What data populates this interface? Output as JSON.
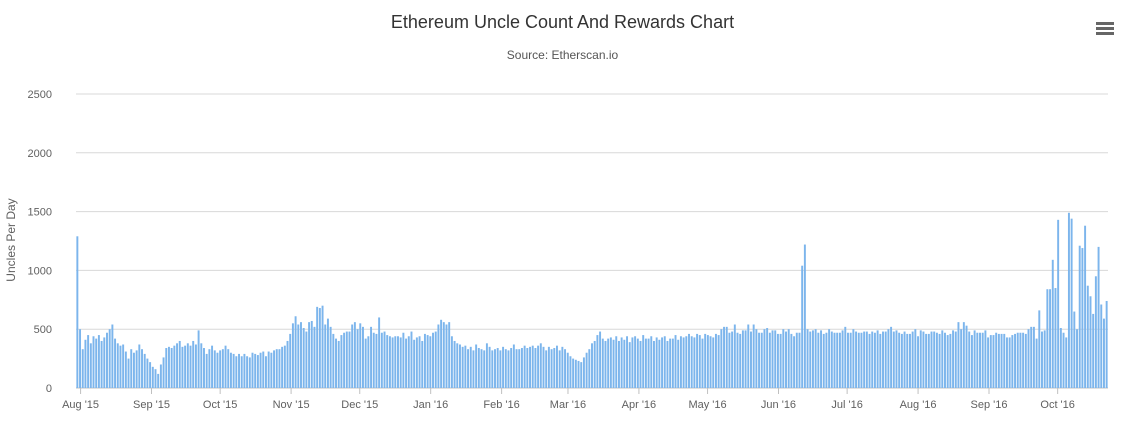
{
  "header": {
    "title": "Ethereum Uncle Count And Rewards Chart",
    "subtitle": "Source: Etherscan.io",
    "menu_icon": "hamburger-menu-icon"
  },
  "colors": {
    "bar": "#7CB5EC",
    "grid": "#D8D8D8",
    "axis_text": "#606060"
  },
  "chart_data": {
    "type": "bar",
    "title": "Ethereum Uncle Count And Rewards Chart",
    "subtitle": "Source: Etherscan.io",
    "xlabel": "",
    "ylabel": "Uncles Per Day",
    "ylim": [
      0,
      2500
    ],
    "yticks": [
      0,
      500,
      1000,
      1500,
      2000,
      2500
    ],
    "grid": true,
    "x_start": "2015-07-30",
    "x_end": "2016-10-23",
    "xtick_labels": [
      {
        "date": "2015-08-01",
        "label": "Aug '15"
      },
      {
        "date": "2015-09-01",
        "label": "Sep '15"
      },
      {
        "date": "2015-10-01",
        "label": "Oct '15"
      },
      {
        "date": "2015-11-01",
        "label": "Nov '15"
      },
      {
        "date": "2015-12-01",
        "label": "Dec '15"
      },
      {
        "date": "2016-01-01",
        "label": "Jan '16"
      },
      {
        "date": "2016-02-01",
        "label": "Feb '16"
      },
      {
        "date": "2016-03-01",
        "label": "Mar '16"
      },
      {
        "date": "2016-04-01",
        "label": "Apr '16"
      },
      {
        "date": "2016-05-01",
        "label": "May '16"
      },
      {
        "date": "2016-06-01",
        "label": "Jun '16"
      },
      {
        "date": "2016-07-01",
        "label": "Jul '16"
      },
      {
        "date": "2016-08-01",
        "label": "Aug '16"
      },
      {
        "date": "2016-09-01",
        "label": "Sep '16"
      },
      {
        "date": "2016-10-01",
        "label": "Oct '16"
      }
    ],
    "series": [
      {
        "values": [
          1290,
          500,
          330,
          410,
          450,
          380,
          440,
          420,
          450,
          400,
          430,
          470,
          500,
          540,
          420,
          380,
          360,
          370,
          310,
          250,
          330,
          300,
          320,
          370,
          330,
          290,
          250,
          220,
          180,
          160,
          120,
          200,
          260,
          340,
          350,
          340,
          360,
          380,
          400,
          350,
          360,
          380,
          360,
          400,
          370,
          490,
          380,
          340,
          290,
          330,
          360,
          320,
          300,
          320,
          330,
          360,
          330,
          300,
          290,
          270,
          290,
          270,
          290,
          270,
          260,
          300,
          290,
          280,
          300,
          310,
          270,
          310,
          300,
          320,
          330,
          330,
          350,
          360,
          400,
          460,
          550,
          610,
          540,
          560,
          510,
          480,
          560,
          570,
          520,
          690,
          680,
          700,
          540,
          590,
          520,
          460,
          420,
          400,
          450,
          470,
          480,
          480,
          540,
          560,
          500,
          550,
          520,
          420,
          440,
          520,
          470,
          460,
          600,
          470,
          480,
          450,
          440,
          430,
          440,
          440,
          430,
          470,
          420,
          440,
          480,
          410,
          430,
          440,
          400,
          460,
          450,
          440,
          470,
          480,
          540,
          580,
          560,
          540,
          560,
          440,
          400,
          380,
          370,
          350,
          360,
          330,
          350,
          320,
          370,
          340,
          330,
          320,
          380,
          350,
          320,
          330,
          340,
          320,
          350,
          330,
          320,
          340,
          370,
          330,
          330,
          340,
          360,
          340,
          350,
          360,
          340,
          360,
          380,
          350,
          320,
          350,
          330,
          340,
          360,
          320,
          350,
          330,
          300,
          270,
          250,
          240,
          230,
          220,
          260,
          300,
          330,
          380,
          400,
          450,
          480,
          420,
          400,
          420,
          430,
          410,
          440,
          400,
          430,
          410,
          440,
          390,
          430,
          440,
          420,
          400,
          450,
          420,
          420,
          440,
          400,
          430,
          410,
          430,
          440,
          400,
          420,
          420,
          450,
          410,
          440,
          430,
          440,
          460,
          440,
          430,
          460,
          450,
          420,
          460,
          450,
          440,
          430,
          460,
          450,
          500,
          520,
          520,
          470,
          480,
          540,
          470,
          460,
          490,
          490,
          540,
          480,
          540,
          500,
          470,
          470,
          500,
          510,
          470,
          490,
          490,
          460,
          460,
          500,
          480,
          500,
          460,
          440,
          470,
          470,
          1040,
          1220,
          500,
          480,
          490,
          500,
          470,
          490,
          460,
          470,
          500,
          480,
          470,
          470,
          470,
          490,
          520,
          470,
          470,
          500,
          480,
          470,
          470,
          480,
          480,
          460,
          480,
          470,
          490,
          460,
          480,
          480,
          500,
          520,
          480,
          490,
          470,
          460,
          480,
          460,
          460,
          480,
          500,
          440,
          490,
          480,
          460,
          460,
          480,
          480,
          470,
          460,
          490,
          470,
          450,
          460,
          490,
          480,
          560,
          500,
          560,
          530,
          480,
          450,
          490,
          470,
          470,
          470,
          490,
          430,
          450,
          450,
          470,
          460,
          460,
          460,
          430,
          430,
          450,
          460,
          470,
          470,
          470,
          460,
          500,
          520,
          520,
          420,
          660,
          480,
          490,
          840,
          840,
          1090,
          850,
          1430,
          510,
          470,
          430,
          1490,
          1440,
          650,
          500,
          1210,
          1190,
          1380,
          870,
          780,
          630,
          950,
          1200,
          710,
          590,
          740
        ]
      }
    ]
  }
}
